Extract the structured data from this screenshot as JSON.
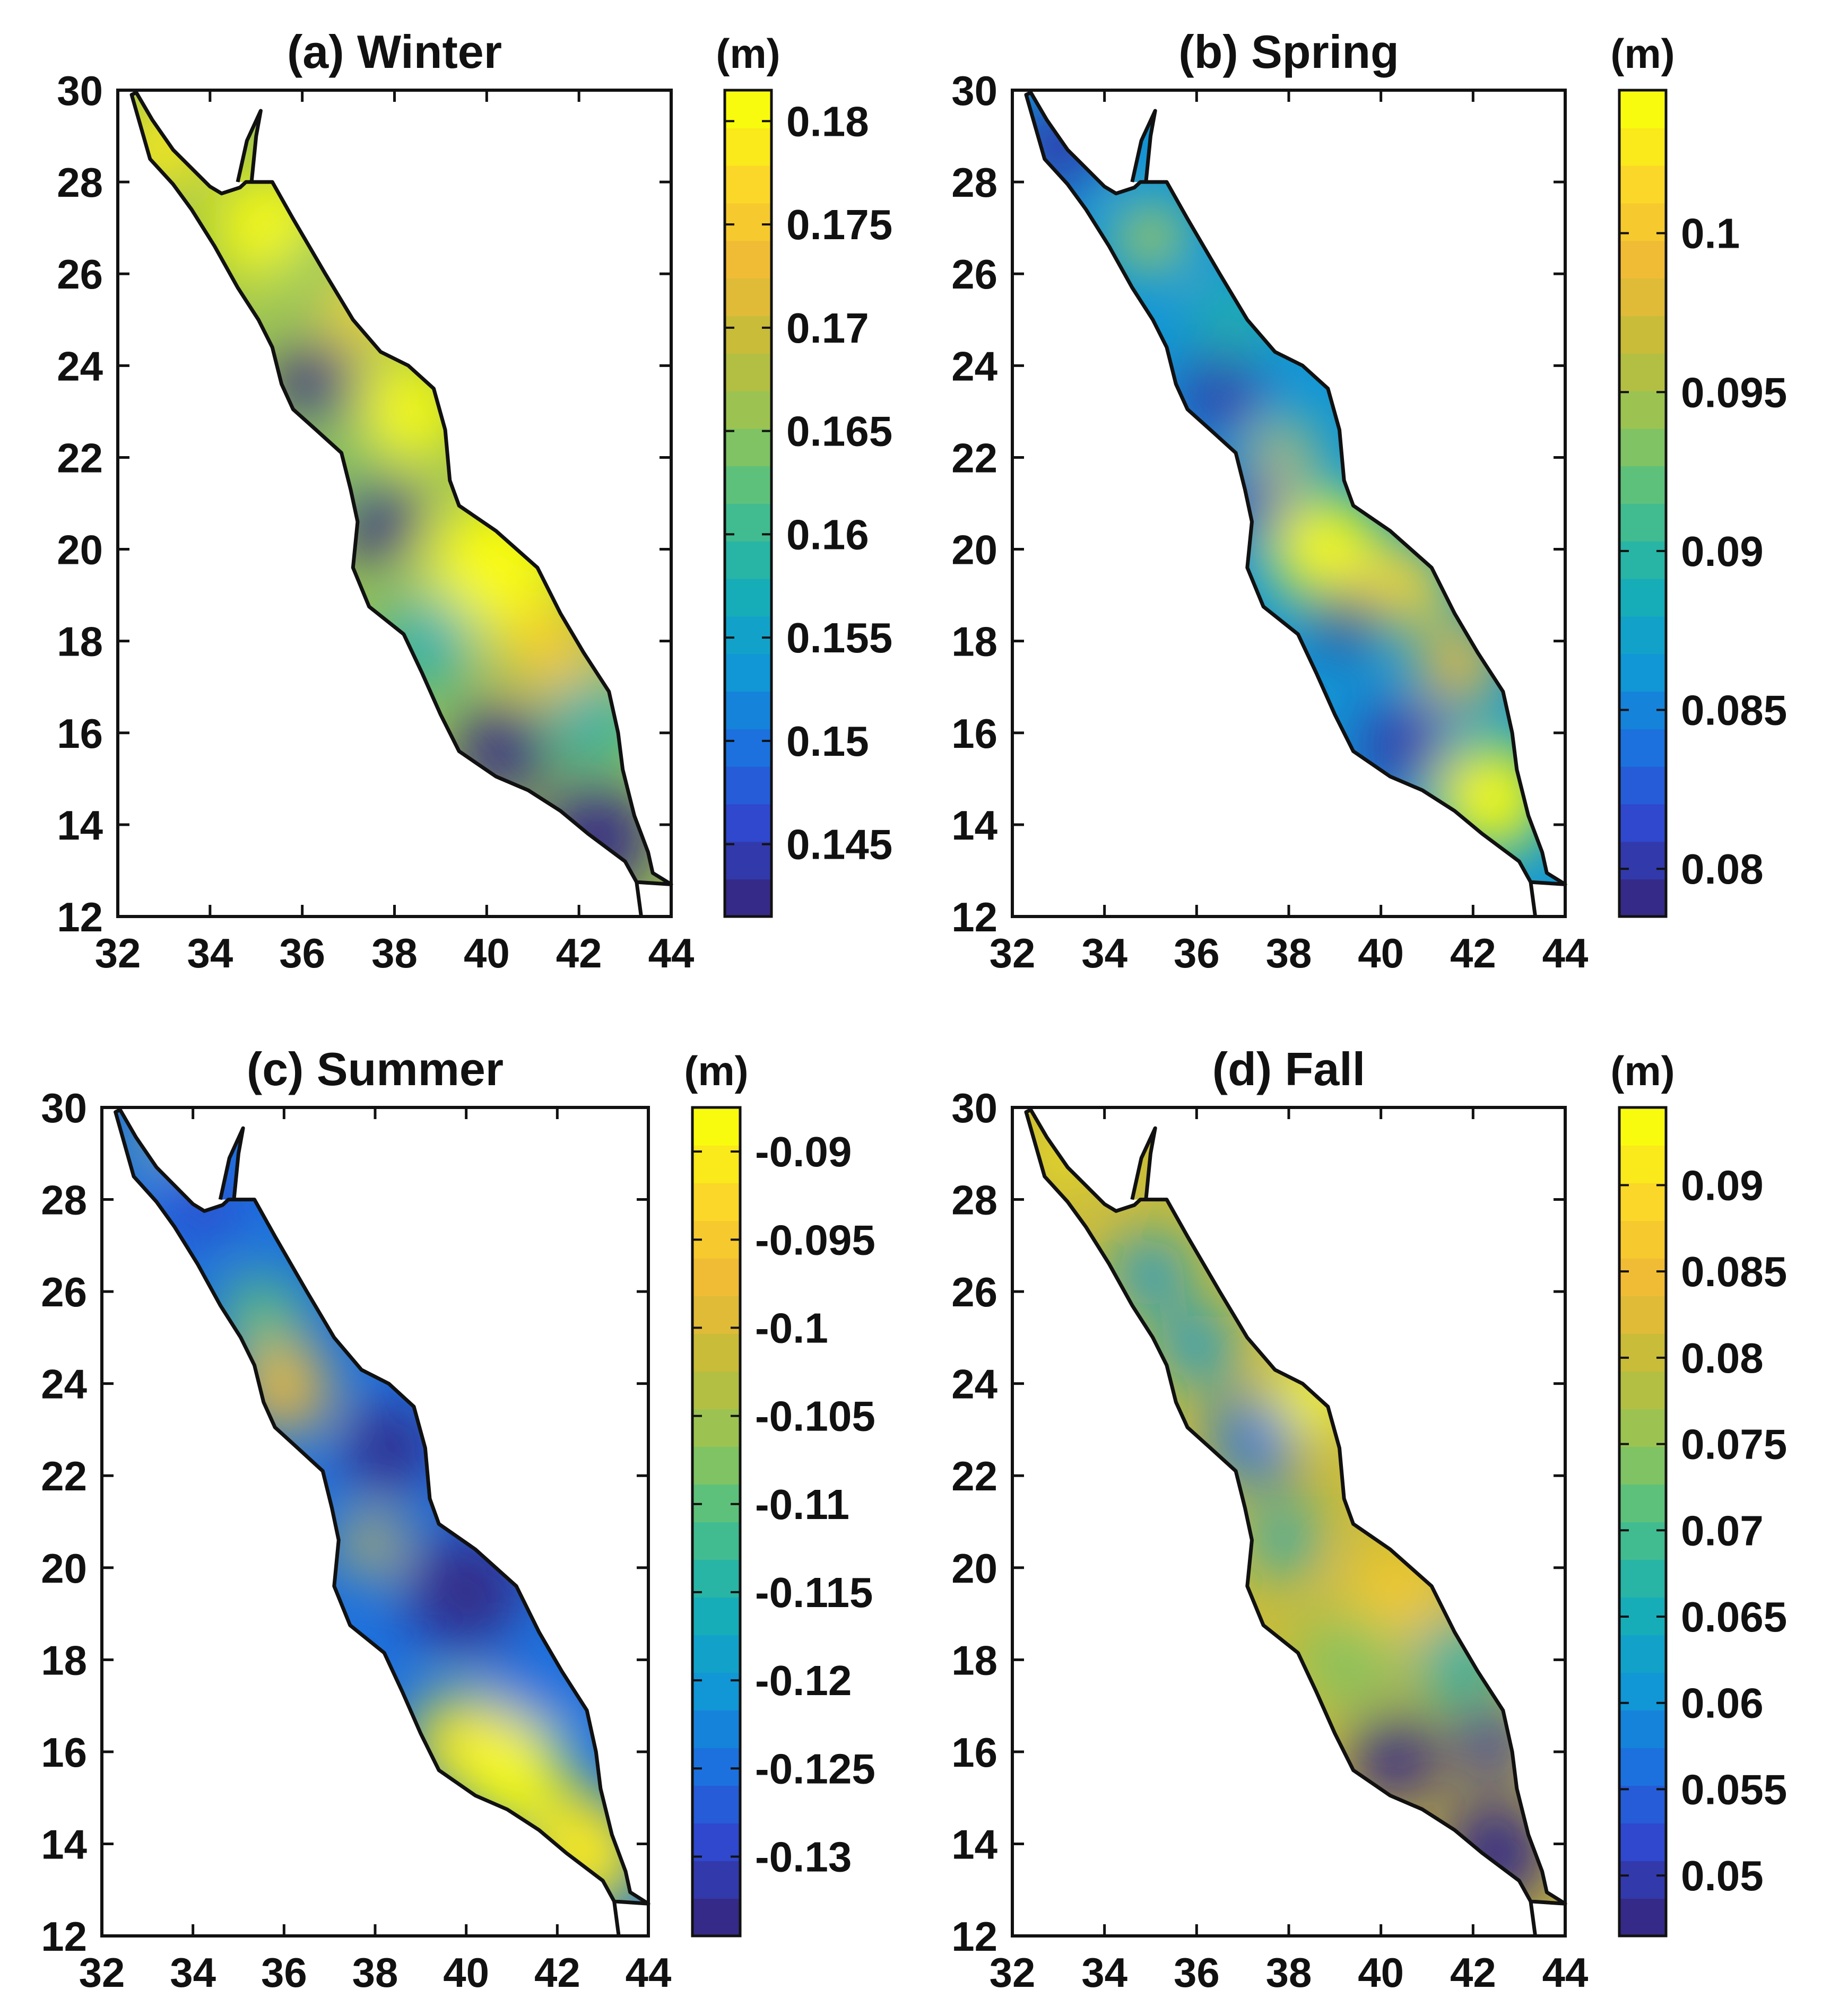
{
  "figure": {
    "colormap": [
      "#352a87",
      "#2f4ad0",
      "#1a75e0",
      "#0f9bd4",
      "#19b1b2",
      "#4ec086",
      "#93c456",
      "#c3bd3a",
      "#f0b936",
      "#fbd52a",
      "#f9fb0e"
    ],
    "coast_color": "#111111",
    "axes": {
      "xlim": [
        32,
        44
      ],
      "ylim": [
        12,
        30
      ],
      "xticks": [
        "32",
        "34",
        "36",
        "38",
        "40",
        "42",
        "44"
      ],
      "yticks": [
        "30",
        "28",
        "26",
        "24",
        "22",
        "20",
        "18",
        "16",
        "14",
        "12"
      ]
    }
  },
  "chart_data": [
    {
      "type": "heatmap",
      "title": "(a) Winter",
      "colorbar_unit": "(m)",
      "colorbar_range": [
        0.1415,
        0.1815
      ],
      "colorbar_ticks": [
        0.18,
        0.175,
        0.17,
        0.165,
        0.16,
        0.155,
        0.15,
        0.145
      ],
      "colorbar_labels": [
        "0.18",
        "0.175",
        "0.17",
        "0.165",
        "0.16",
        "0.155",
        "0.15",
        "0.145"
      ],
      "base_level": 0.6,
      "features": [
        {
          "lon": 33.0,
          "lat": 28.8,
          "level": 0.92,
          "radius": 1.0
        },
        {
          "lon": 35.3,
          "lat": 27.0,
          "level": 0.96,
          "radius": 1.2
        },
        {
          "lon": 36.3,
          "lat": 26.0,
          "level": 0.55,
          "radius": 0.8
        },
        {
          "lon": 37.3,
          "lat": 25.2,
          "level": 0.88,
          "radius": 0.8
        },
        {
          "lon": 36.3,
          "lat": 23.6,
          "level": 0.02,
          "radius": 0.9
        },
        {
          "lon": 38.3,
          "lat": 23.0,
          "level": 0.97,
          "radius": 1.1
        },
        {
          "lon": 37.0,
          "lat": 22.0,
          "level": 0.55,
          "radius": 0.8
        },
        {
          "lon": 37.7,
          "lat": 20.6,
          "level": 0.02,
          "radius": 0.9
        },
        {
          "lon": 40.2,
          "lat": 19.6,
          "level": 0.97,
          "radius": 1.5
        },
        {
          "lon": 41.4,
          "lat": 17.8,
          "level": 0.85,
          "radius": 1.0
        },
        {
          "lon": 38.7,
          "lat": 18.0,
          "level": 0.4,
          "radius": 1.0
        },
        {
          "lon": 42.3,
          "lat": 16.3,
          "level": 0.4,
          "radius": 0.9
        },
        {
          "lon": 40.3,
          "lat": 15.6,
          "level": 0.03,
          "radius": 1.0
        },
        {
          "lon": 42.4,
          "lat": 13.7,
          "level": 0.02,
          "radius": 1.2
        }
      ]
    },
    {
      "type": "heatmap",
      "title": "(b) Spring",
      "colorbar_unit": "(m)",
      "colorbar_range": [
        0.0785,
        0.1045
      ],
      "colorbar_ticks": [
        0.1,
        0.095,
        0.09,
        0.085,
        0.08
      ],
      "colorbar_labels": [
        "0.1",
        "0.095",
        "0.09",
        "0.085",
        "0.08"
      ],
      "base_level": 0.3,
      "features": [
        {
          "lon": 33.0,
          "lat": 28.8,
          "level": 0.08,
          "radius": 1.0
        },
        {
          "lon": 35.0,
          "lat": 26.8,
          "level": 0.95,
          "radius": 0.6
        },
        {
          "lon": 36.8,
          "lat": 25.0,
          "level": 0.45,
          "radius": 0.8
        },
        {
          "lon": 36.5,
          "lat": 23.4,
          "level": 0.05,
          "radius": 0.9
        },
        {
          "lon": 37.9,
          "lat": 22.1,
          "level": 0.88,
          "radius": 0.6
        },
        {
          "lon": 37.3,
          "lat": 20.9,
          "level": 0.05,
          "radius": 0.8
        },
        {
          "lon": 38.8,
          "lat": 20.0,
          "level": 0.97,
          "radius": 1.2
        },
        {
          "lon": 40.6,
          "lat": 19.2,
          "level": 0.88,
          "radius": 0.9
        },
        {
          "lon": 39.2,
          "lat": 18.5,
          "level": 0.02,
          "radius": 0.7
        },
        {
          "lon": 40.5,
          "lat": 15.7,
          "level": 0.05,
          "radius": 1.0
        },
        {
          "lon": 41.7,
          "lat": 17.5,
          "level": 0.8,
          "radius": 0.9
        },
        {
          "lon": 42.4,
          "lat": 14.6,
          "level": 0.98,
          "radius": 1.2
        }
      ]
    },
    {
      "type": "heatmap",
      "title": "(c) Summer",
      "colorbar_unit": "(m)",
      "colorbar_range": [
        -0.1345,
        -0.0875
      ],
      "colorbar_ticks": [
        -0.09,
        -0.095,
        -0.1,
        -0.105,
        -0.11,
        -0.115,
        -0.12,
        -0.125,
        -0.13
      ],
      "colorbar_labels": [
        "-0.09",
        "-0.095",
        "-0.1",
        "-0.105",
        "-0.11",
        "-0.115",
        "-0.12",
        "-0.125",
        "-0.13"
      ],
      "base_level": 0.22,
      "features": [
        {
          "lon": 33.2,
          "lat": 29.3,
          "level": 0.92,
          "radius": 0.4
        },
        {
          "lon": 34.2,
          "lat": 27.8,
          "level": 0.1,
          "radius": 0.8
        },
        {
          "lon": 35.5,
          "lat": 25.5,
          "level": 0.5,
          "radius": 0.9
        },
        {
          "lon": 36.0,
          "lat": 23.9,
          "level": 0.8,
          "radius": 1.0
        },
        {
          "lon": 38.3,
          "lat": 22.6,
          "level": 0.03,
          "radius": 1.0
        },
        {
          "lon": 37.9,
          "lat": 20.5,
          "level": 0.82,
          "radius": 0.6
        },
        {
          "lon": 40.0,
          "lat": 19.5,
          "level": 0.02,
          "radius": 1.3
        },
        {
          "lon": 41.5,
          "lat": 17.4,
          "level": 0.2,
          "radius": 1.0
        },
        {
          "lon": 39.9,
          "lat": 16.2,
          "level": 0.95,
          "radius": 1.1
        },
        {
          "lon": 41.0,
          "lat": 15.5,
          "level": 0.97,
          "radius": 1.2
        },
        {
          "lon": 42.6,
          "lat": 13.8,
          "level": 0.95,
          "radius": 1.3
        }
      ]
    },
    {
      "type": "heatmap",
      "title": "(d) Fall",
      "colorbar_unit": "(m)",
      "colorbar_range": [
        0.0465,
        0.0945
      ],
      "colorbar_ticks": [
        0.09,
        0.085,
        0.08,
        0.075,
        0.07,
        0.065,
        0.06,
        0.055,
        0.05
      ],
      "colorbar_labels": [
        "0.09",
        "0.085",
        "0.08",
        "0.075",
        "0.07",
        "0.065",
        "0.06",
        "0.055",
        "0.05"
      ],
      "base_level": 0.72,
      "features": [
        {
          "lon": 33.2,
          "lat": 29.0,
          "level": 0.95,
          "radius": 0.6
        },
        {
          "lon": 35.0,
          "lat": 26.4,
          "level": 0.3,
          "radius": 0.8
        },
        {
          "lon": 36.0,
          "lat": 24.8,
          "level": 0.3,
          "radius": 0.8
        },
        {
          "lon": 37.3,
          "lat": 22.8,
          "level": 0.22,
          "radius": 1.0
        },
        {
          "lon": 38.5,
          "lat": 23.7,
          "level": 0.97,
          "radius": 0.8
        },
        {
          "lon": 37.9,
          "lat": 20.6,
          "level": 0.35,
          "radius": 0.7
        },
        {
          "lon": 40.3,
          "lat": 19.4,
          "level": 0.82,
          "radius": 1.0
        },
        {
          "lon": 39.3,
          "lat": 18.0,
          "level": 0.55,
          "radius": 1.0
        },
        {
          "lon": 41.7,
          "lat": 18.0,
          "level": 0.4,
          "radius": 0.9
        },
        {
          "lon": 40.3,
          "lat": 15.8,
          "level": 0.03,
          "radius": 1.0
        },
        {
          "lon": 42.4,
          "lat": 16.2,
          "level": 0.05,
          "radius": 0.8
        },
        {
          "lon": 42.5,
          "lat": 13.8,
          "level": 0.02,
          "radius": 1.2
        }
      ]
    }
  ],
  "coastline": {
    "main": [
      [
        32.4,
        29.95
      ],
      [
        32.75,
        29.35
      ],
      [
        33.2,
        28.7
      ],
      [
        34.0,
        27.9
      ],
      [
        34.25,
        27.75
      ],
      [
        34.65,
        27.88
      ],
      [
        34.78,
        28.0
      ],
      [
        34.85,
        28.0
      ],
      [
        35.35,
        28.0
      ],
      [
        35.8,
        27.2
      ],
      [
        36.5,
        26.0
      ],
      [
        37.1,
        25.0
      ],
      [
        37.7,
        24.3
      ],
      [
        38.3,
        24.0
      ],
      [
        38.85,
        23.5
      ],
      [
        39.1,
        22.6
      ],
      [
        39.2,
        21.5
      ],
      [
        39.4,
        20.95
      ],
      [
        40.2,
        20.4
      ],
      [
        41.1,
        19.6
      ],
      [
        41.6,
        18.6
      ],
      [
        42.1,
        17.75
      ],
      [
        42.65,
        16.9
      ],
      [
        42.85,
        16.0
      ],
      [
        42.95,
        15.2
      ],
      [
        43.2,
        14.2
      ],
      [
        43.5,
        13.4
      ],
      [
        43.6,
        12.95
      ],
      [
        44.0,
        12.7
      ],
      [
        43.25,
        12.75
      ],
      [
        43.0,
        13.2
      ],
      [
        42.2,
        13.8
      ],
      [
        41.6,
        14.3
      ],
      [
        40.9,
        14.75
      ],
      [
        40.2,
        15.05
      ],
      [
        39.4,
        15.6
      ],
      [
        39.0,
        16.4
      ],
      [
        38.6,
        17.3
      ],
      [
        38.2,
        18.15
      ],
      [
        37.45,
        18.75
      ],
      [
        37.1,
        19.6
      ],
      [
        37.2,
        20.6
      ],
      [
        37.05,
        21.3
      ],
      [
        36.85,
        22.1
      ],
      [
        36.3,
        22.6
      ],
      [
        35.8,
        23.05
      ],
      [
        35.55,
        23.6
      ],
      [
        35.35,
        24.4
      ],
      [
        35.05,
        25.0
      ],
      [
        34.6,
        25.7
      ],
      [
        34.1,
        26.6
      ],
      [
        33.6,
        27.4
      ],
      [
        33.2,
        27.95
      ],
      [
        32.7,
        28.5
      ],
      [
        32.3,
        29.9
      ]
    ],
    "aqaba": [
      [
        34.6,
        28.0
      ],
      [
        34.8,
        28.9
      ],
      [
        35.1,
        29.55
      ],
      [
        35.0,
        29.0
      ],
      [
        34.9,
        28.0
      ]
    ],
    "bab_exit_a": [
      [
        43.25,
        12.75
      ],
      [
        43.35,
        12.0
      ]
    ],
    "bab_exit_b": [
      [
        43.5,
        12.75
      ],
      [
        44.0,
        12.7
      ]
    ]
  }
}
